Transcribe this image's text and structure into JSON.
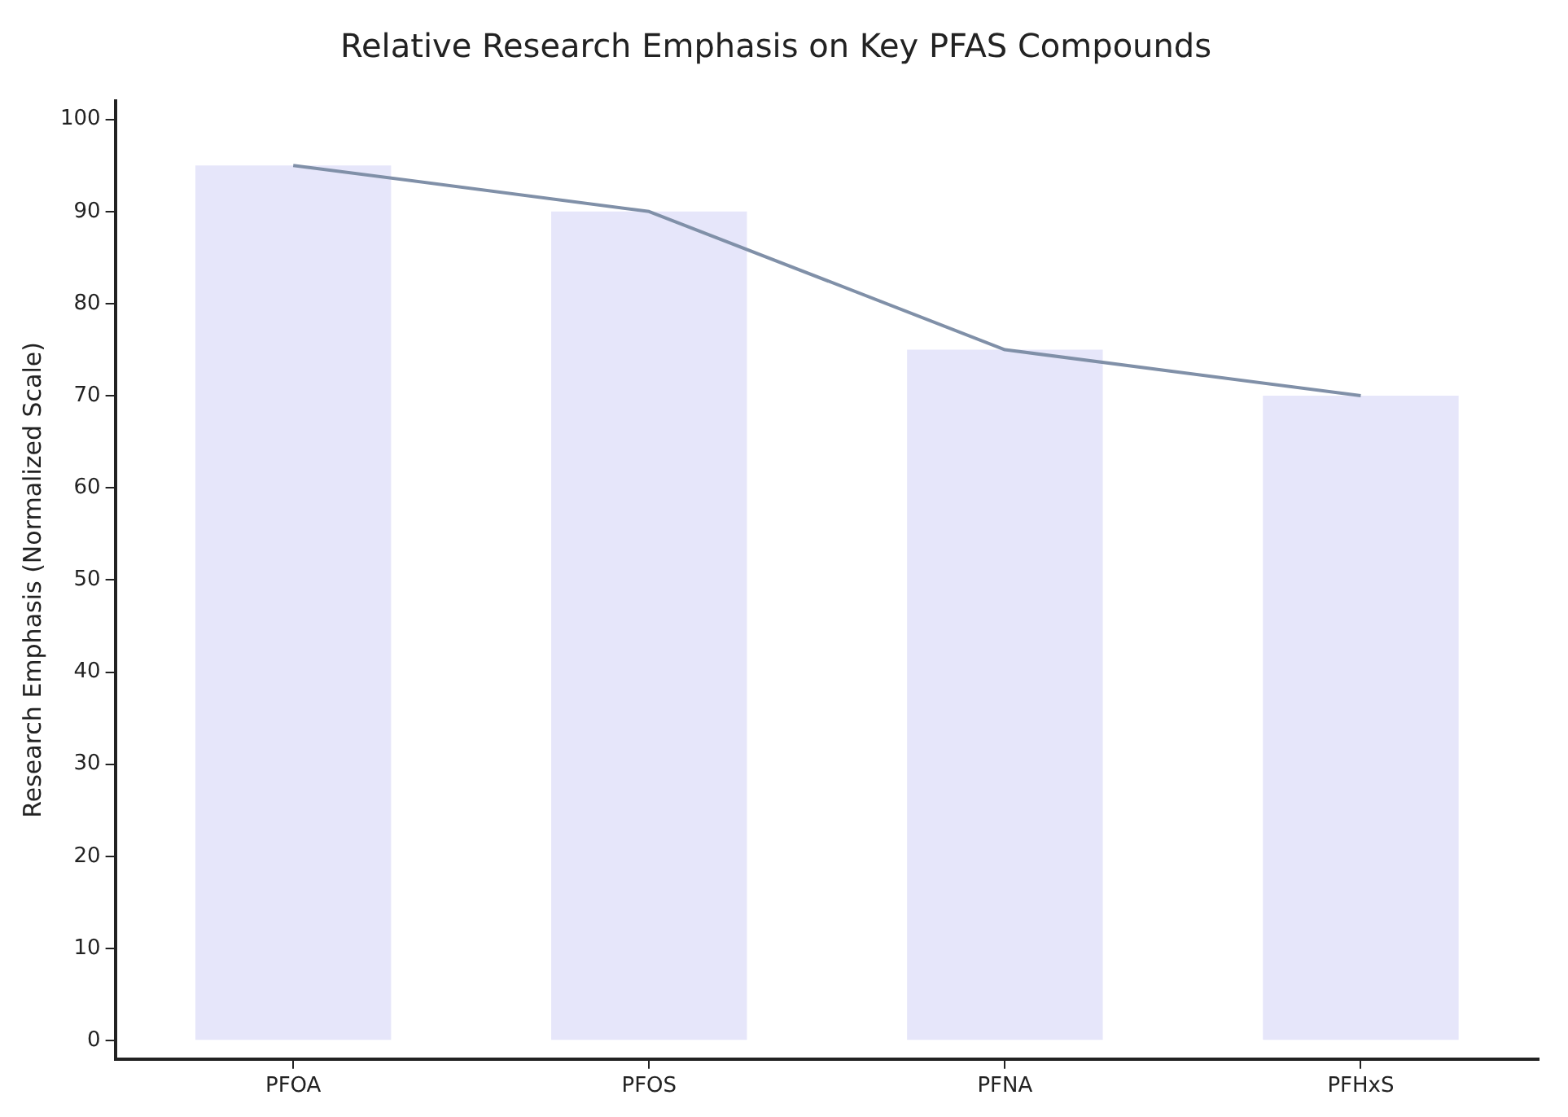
{
  "chart_data": {
    "type": "bar",
    "title": "Relative Research Emphasis on Key PFAS Compounds",
    "ylabel": "Research Emphasis (Normalized Scale)",
    "categories": [
      "PFOA",
      "PFOS",
      "PFNA",
      "PFHxS"
    ],
    "series": [
      {
        "color": "#e6e6fa",
        "values": [
          95,
          90,
          75,
          70
        ]
      },
      {
        "type": "line",
        "color": "#8090a8",
        "values": [
          95,
          90,
          75,
          70
        ]
      }
    ],
    "ylim": [
      -2,
      102
    ],
    "yticks": [
      0,
      10,
      20,
      30,
      40,
      50,
      60,
      70,
      80,
      90,
      100
    ],
    "grid": false,
    "legend": false,
    "marker": "none"
  }
}
